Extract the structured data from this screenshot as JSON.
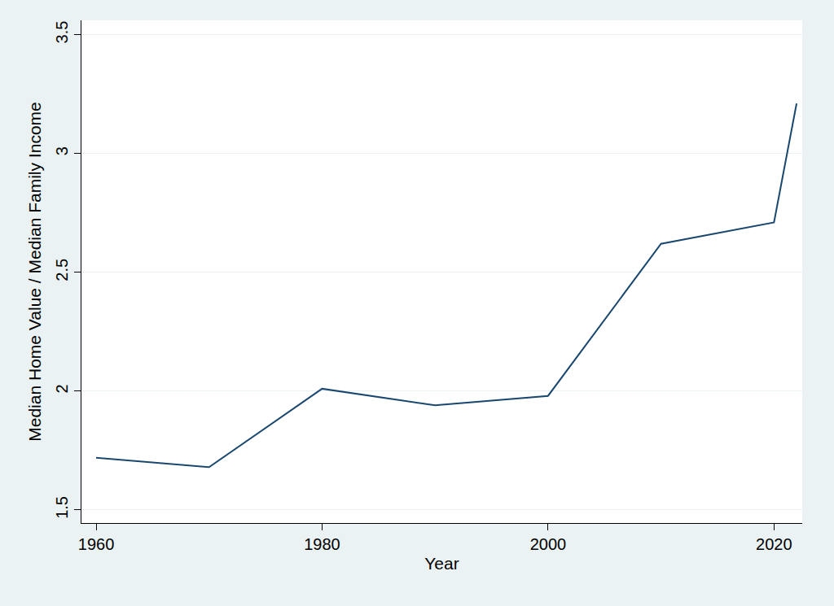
{
  "chart_data": {
    "type": "line",
    "x_label": "Year",
    "y_label": "Median Home Value / Median Family Income",
    "x": [
      1960,
      1970,
      1980,
      1990,
      2000,
      2010,
      2020,
      2022
    ],
    "values": [
      1.72,
      1.68,
      2.01,
      1.94,
      1.98,
      2.62,
      2.71,
      3.21
    ],
    "color": "#1a476f",
    "xlim": [
      1958.7,
      2022.5
    ],
    "xticks": [
      1960,
      1980,
      2000,
      2020
    ],
    "ylim": [
      1.445,
      3.56
    ],
    "yticks": [
      1.5,
      2,
      2.5,
      3,
      3.5
    ],
    "grid": true
  }
}
